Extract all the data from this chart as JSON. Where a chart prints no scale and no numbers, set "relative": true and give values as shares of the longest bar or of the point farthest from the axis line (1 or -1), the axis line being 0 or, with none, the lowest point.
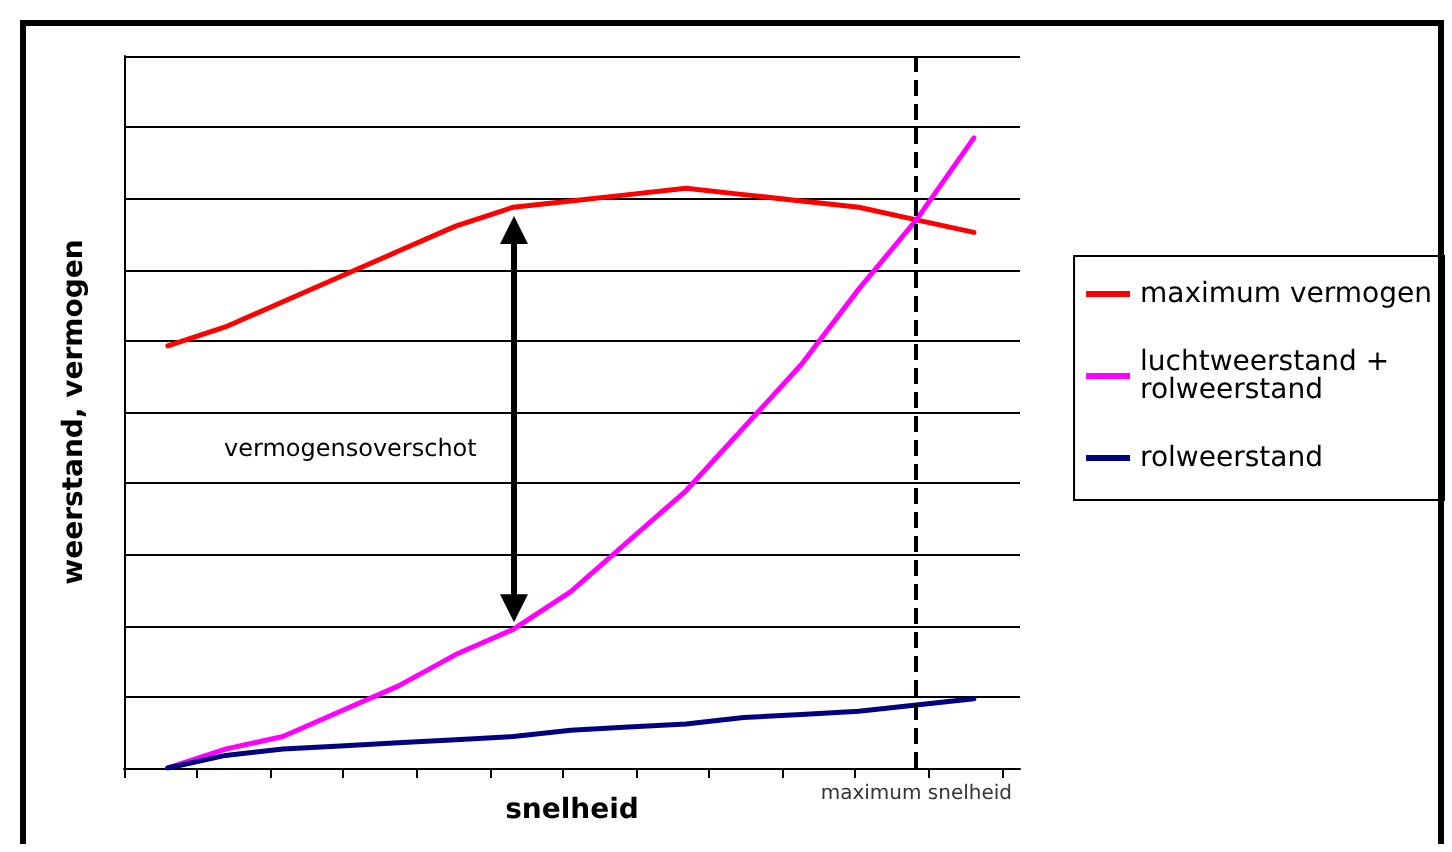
{
  "chart_data": {
    "type": "line",
    "relative": true,
    "xlabel": "snelheid",
    "ylabel": "weerstand, vermogen",
    "categories": [
      null,
      null,
      null,
      null,
      null,
      null,
      null,
      null,
      null,
      null,
      null,
      null,
      null,
      null,
      null
    ],
    "series": [
      {
        "name": "maximum vermogen",
        "color": "#ff0000",
        "values": [
          0.67,
          0.7,
          0.74,
          0.78,
          0.82,
          0.86,
          0.89,
          0.9,
          0.91,
          0.92,
          0.91,
          0.9,
          0.89,
          0.87,
          0.85
        ]
      },
      {
        "name": "luchtweerstand + rolweerstand",
        "color": "#ff00ff",
        "values": [
          0,
          0.03,
          0.05,
          0.09,
          0.13,
          0.18,
          0.22,
          0.28,
          0.36,
          0.44,
          0.54,
          0.64,
          0.76,
          0.87,
          1
        ]
      },
      {
        "name": "rolweerstand",
        "color": "#000080",
        "values": [
          0,
          0.02,
          0.03,
          0.035,
          0.04,
          0.045,
          0.05,
          0.06,
          0.065,
          0.07,
          0.08,
          0.085,
          0.09,
          0.1,
          0.11
        ]
      }
    ],
    "annotations": [
      "vermogensoverschot",
      "maximum snelheid"
    ],
    "grid": "y",
    "legend": "right",
    "marker": "none",
    "line_style": "solid",
    "tick_labels": false
  }
}
